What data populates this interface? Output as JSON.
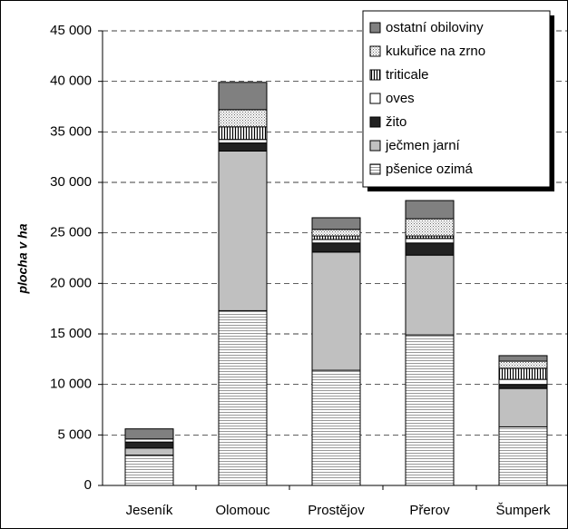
{
  "chart_data": {
    "type": "stacked_bar",
    "y_label": "plocha v ha",
    "categories": [
      "Jeseník",
      "Olomouc",
      "Prostějov",
      "Přerov",
      "Šumperk"
    ],
    "series": [
      {
        "name": "pšenice ozimá",
        "color": "#ffffff",
        "pattern": "hlines",
        "values": [
          3000,
          17300,
          11400,
          14900,
          5800
        ]
      },
      {
        "name": "ječmen jarní",
        "color": "#c0c0c0",
        "pattern": "solid",
        "values": [
          700,
          15800,
          11700,
          7900,
          3800
        ]
      },
      {
        "name": "žito",
        "color": "#222222",
        "pattern": "solid",
        "values": [
          600,
          800,
          900,
          1200,
          400
        ]
      },
      {
        "name": "oves",
        "color": "#ffffff",
        "pattern": "solid",
        "values": [
          300,
          350,
          350,
          450,
          500
        ]
      },
      {
        "name": "triticale",
        "color": "#ffffff",
        "pattern": "vlines",
        "values": [
          0,
          1250,
          350,
          250,
          1100
        ]
      },
      {
        "name": "kukuřice na zrno",
        "color": "#ffffff",
        "pattern": "dots",
        "values": [
          0,
          1700,
          650,
          1700,
          700
        ]
      },
      {
        "name": "ostatní obiloviny",
        "color": "#808080",
        "pattern": "solid",
        "values": [
          1000,
          2700,
          1150,
          1800,
          550
        ]
      }
    ],
    "ylim": [
      0,
      45000
    ],
    "yticks": [
      0,
      {
        "value": 5000,
        "label": "5 000"
      },
      {
        "value": 10000,
        "label": "10 000"
      },
      {
        "value": 15000,
        "label": "15 000"
      },
      {
        "value": 20000,
        "label": "20 000"
      },
      {
        "value": 25000,
        "label": "25 000"
      },
      {
        "value": 30000,
        "label": "30 000"
      },
      {
        "value": 35000,
        "label": "35 000"
      },
      {
        "value": 40000,
        "label": "40 000"
      },
      {
        "value": 45000,
        "label": "45 000"
      }
    ],
    "grid": true,
    "legend": "top-right"
  }
}
